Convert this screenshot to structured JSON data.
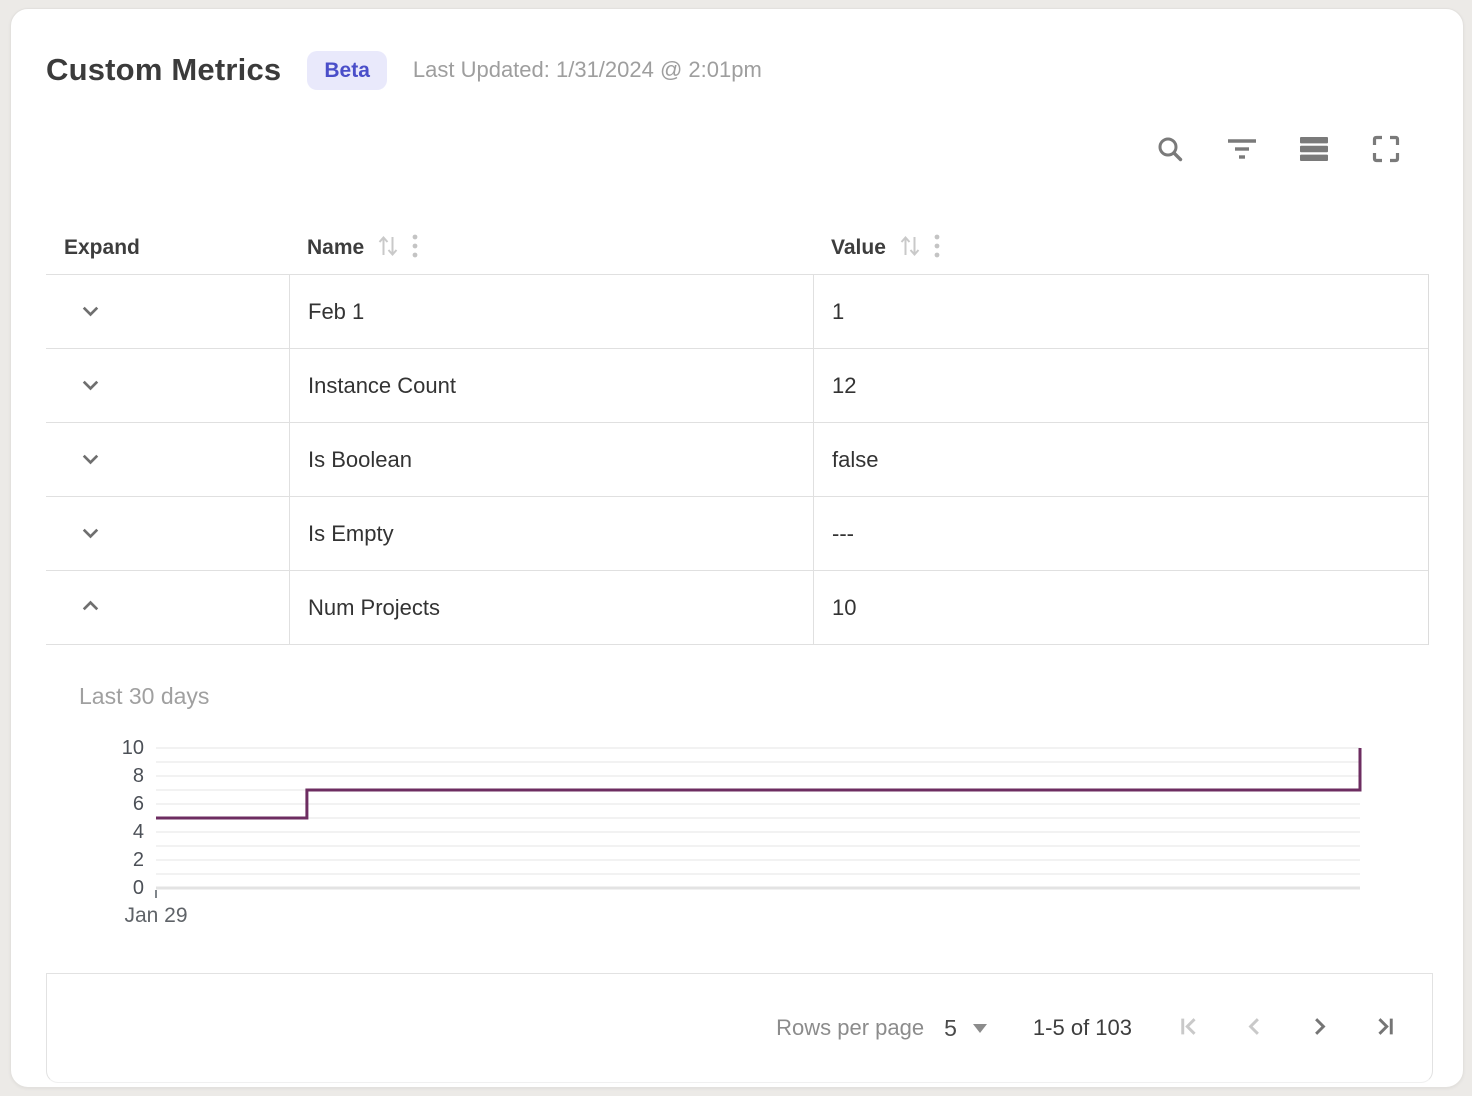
{
  "header": {
    "title": "Custom Metrics",
    "badge": "Beta",
    "last_updated": "Last Updated: 1/31/2024 @ 2:01pm"
  },
  "toolbar": {
    "icons": [
      "search-icon",
      "filter-icon",
      "density-icon",
      "fullscreen-icon"
    ]
  },
  "table": {
    "columns": [
      "Expand",
      "Name",
      "Value"
    ],
    "rows": [
      {
        "name": "Feb 1",
        "value": "1",
        "expanded": false
      },
      {
        "name": "Instance Count",
        "value": "12",
        "expanded": false
      },
      {
        "name": "Is Boolean",
        "value": "false",
        "expanded": false
      },
      {
        "name": "Is Empty",
        "value": "---",
        "expanded": false
      },
      {
        "name": "Num Projects",
        "value": "10",
        "expanded": true
      }
    ]
  },
  "detail": {
    "label": "Last 30 days"
  },
  "chart_data": {
    "type": "line",
    "subtype": "step",
    "title": "Last 30 days",
    "series": [
      {
        "name": "Num Projects",
        "points": [
          [
            0,
            5
          ],
          [
            3.76,
            5
          ],
          [
            3.76,
            7
          ],
          [
            30,
            7
          ],
          [
            30,
            10
          ]
        ]
      }
    ],
    "xlim": [
      0,
      30
    ],
    "ylim": [
      0,
      10
    ],
    "yticks": [
      0,
      2,
      4,
      6,
      8,
      10
    ],
    "grid_step": 1,
    "xticks": [
      {
        "pos": 0,
        "label": "Jan 29"
      }
    ],
    "line_color": "#6d2d61",
    "grid_color": "#ededed",
    "baseline_color": "#e3e3e3",
    "legend": "off"
  },
  "pagination": {
    "rows_per_page_label": "Rows per page",
    "rows_per_page_value": "5",
    "range": "1-5 of 103"
  },
  "colors": {
    "badge_bg": "#e9e9fb",
    "badge_text": "#4a4ec9",
    "line": "#6d2d61",
    "icon_gray": "#7a7a7a",
    "disabled_nav": "#c9c9c9",
    "enabled_nav": "#757575"
  }
}
